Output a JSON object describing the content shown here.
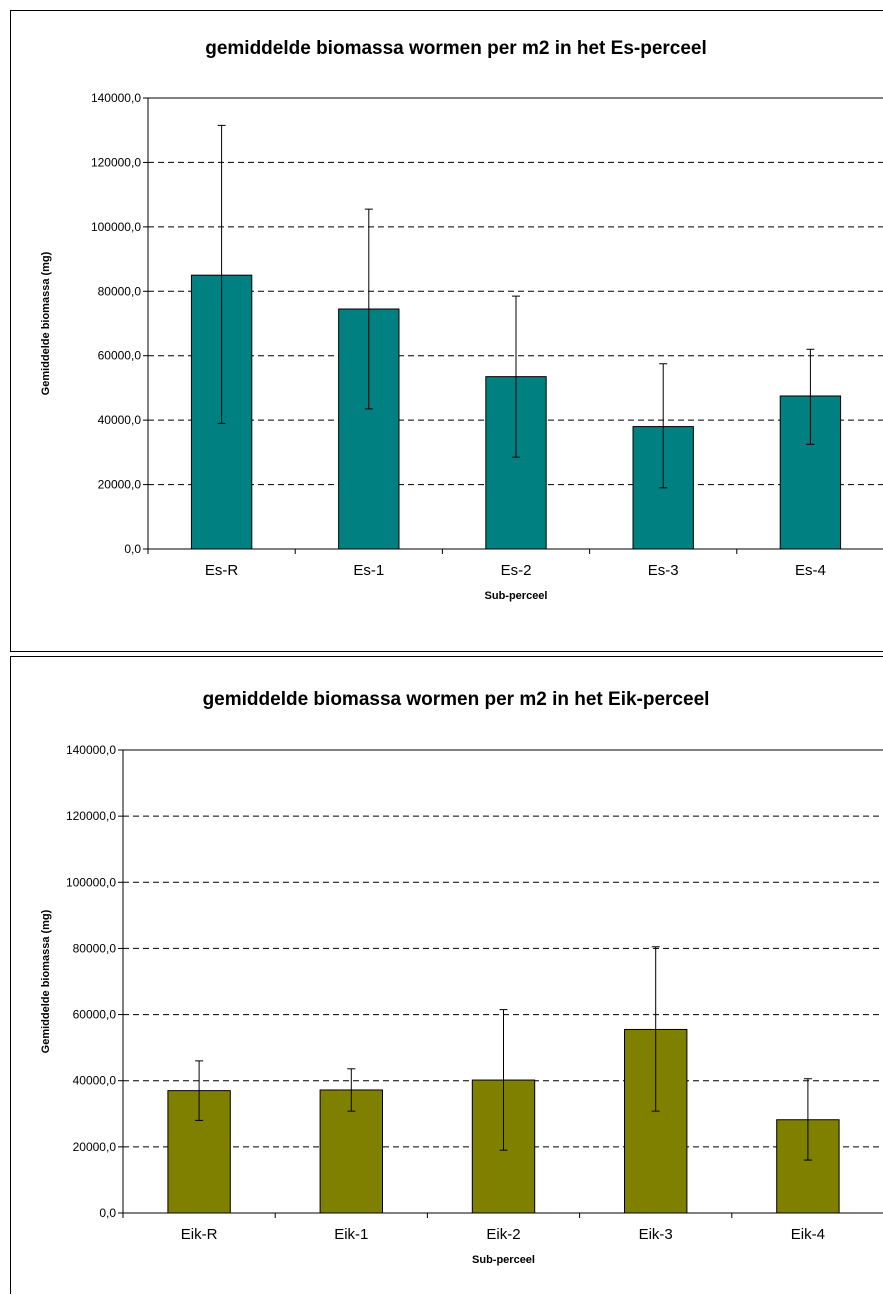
{
  "chart_data": [
    {
      "type": "bar",
      "title": "gemiddelde biomassa wormen per m2 in het Es-perceel",
      "xlabel": "Sub-perceel",
      "ylabel": "Gemiddelde biomassa (mg)",
      "ylim": [
        0,
        140000
      ],
      "yticks": [
        0,
        20000,
        40000,
        60000,
        80000,
        100000,
        120000,
        140000
      ],
      "ytick_labels": [
        "0,0",
        "20000,0",
        "40000,0",
        "60000,0",
        "80000,0",
        "100000,0",
        "120000,0",
        "140000,0"
      ],
      "categories": [
        "Es-R",
        "Es-1",
        "Es-2",
        "Es-3",
        "Es-4"
      ],
      "values": [
        85000,
        74500,
        53500,
        38000,
        47500
      ],
      "error_low": [
        39000,
        43500,
        28500,
        19000,
        32500
      ],
      "error_high": [
        131500,
        105500,
        78500,
        57500,
        62000
      ],
      "bar_color": "#008080",
      "grid": true,
      "legend": "none"
    },
    {
      "type": "bar",
      "title": "gemiddelde biomassa wormen per m2 in het Eik-perceel",
      "xlabel": "Sub-perceel",
      "ylabel": "Gemiddelde biomassa (mg)",
      "ylim": [
        0,
        140000
      ],
      "yticks": [
        0,
        20000,
        40000,
        60000,
        80000,
        100000,
        120000,
        140000
      ],
      "ytick_labels": [
        "0,0",
        "20000,0",
        "40000,0",
        "60000,0",
        "80000,0",
        "100000,0",
        "120000,0",
        "140000,0"
      ],
      "categories": [
        "Eik-R",
        "Eik-1",
        "Eik-2",
        "Eik-3",
        "Eik-4"
      ],
      "values": [
        37000,
        37200,
        40200,
        55500,
        28200
      ],
      "error_low": [
        28000,
        30800,
        19000,
        30800,
        16000
      ],
      "error_high": [
        46000,
        43600,
        61500,
        80500,
        40600
      ],
      "bar_color": "#808000",
      "grid": true,
      "legend": "none"
    }
  ]
}
